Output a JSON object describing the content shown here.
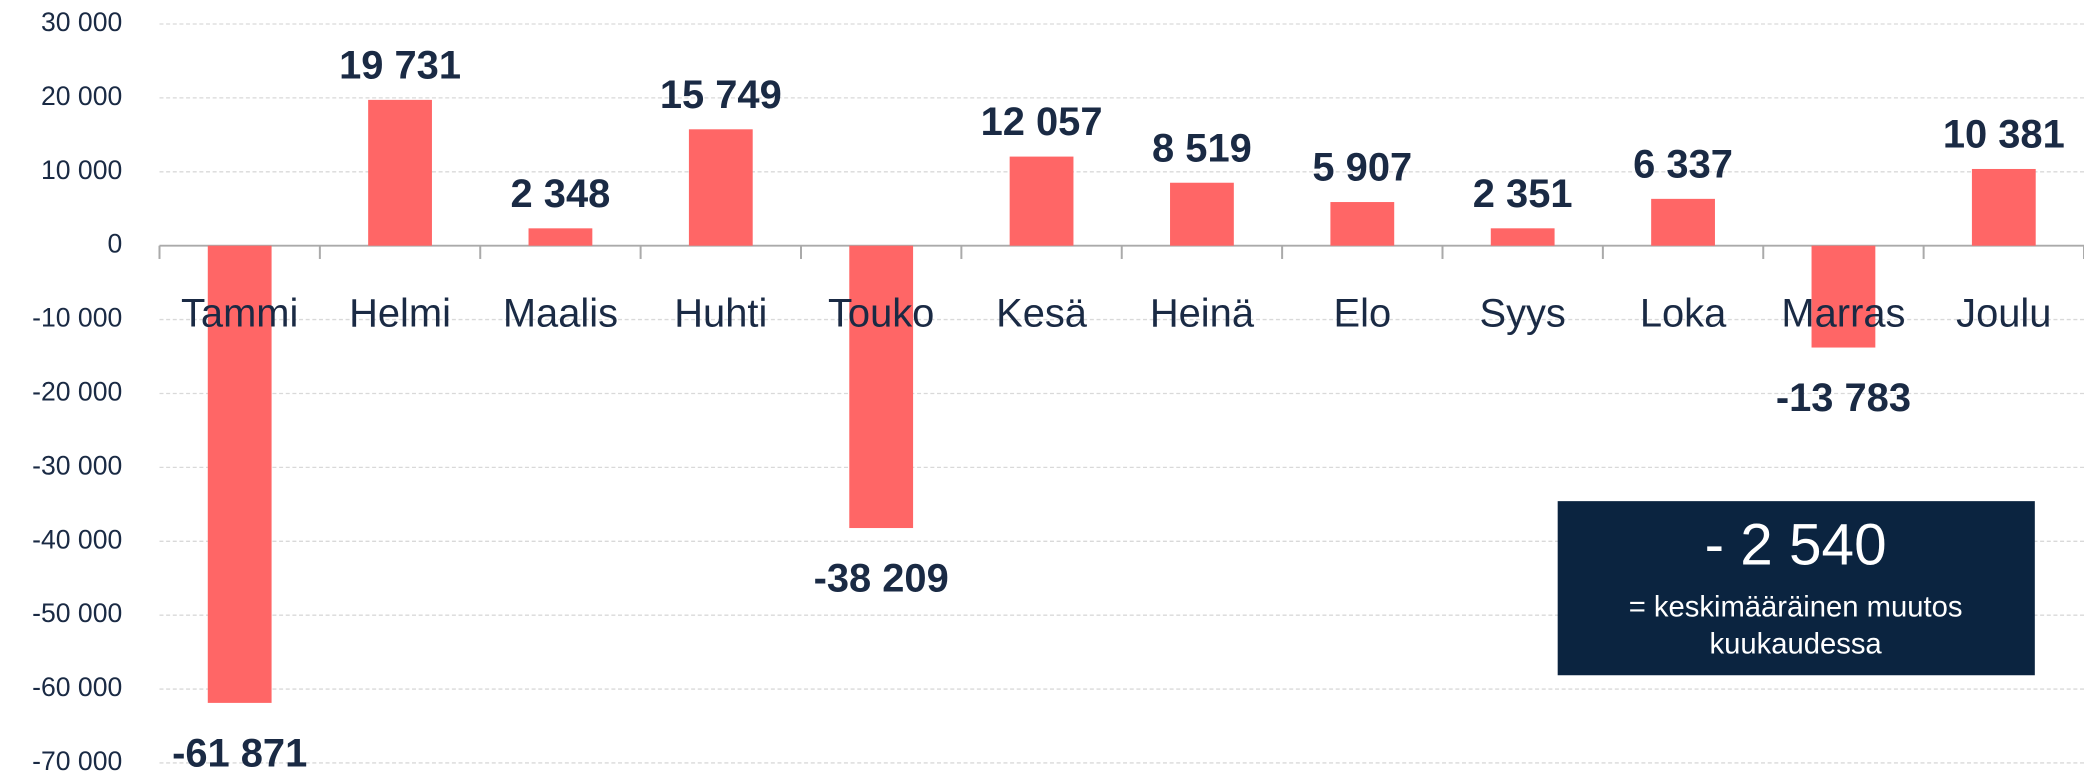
{
  "chart_data": {
    "type": "bar",
    "categories": [
      "Tammi",
      "Helmi",
      "Maalis",
      "Huhti",
      "Touko",
      "Kesä",
      "Heinä",
      "Elo",
      "Syys",
      "Loka",
      "Marras",
      "Joulu"
    ],
    "values": [
      -61871,
      19731,
      2348,
      15749,
      -38209,
      12057,
      8519,
      5907,
      2351,
      6337,
      -13783,
      10381
    ],
    "value_labels": [
      "-61 871",
      "19 731",
      "2 348",
      "15 749",
      "-38 209",
      "12 057",
      "8 519",
      "5 907",
      "2 351",
      "6 337",
      "-13 783",
      "10 381"
    ],
    "color": "#ff6666",
    "ylim": [
      -70000,
      30000
    ],
    "yticks": [
      {
        "value": -70000,
        "label": "-70 000"
      },
      {
        "value": -60000,
        "label": "-60 000"
      },
      {
        "value": -50000,
        "label": "-50 000"
      },
      {
        "value": -40000,
        "label": "-40 000"
      },
      {
        "value": -30000,
        "label": "-30 000"
      },
      {
        "value": -20000,
        "label": "-20 000"
      },
      {
        "value": -10000,
        "label": "-10 000"
      },
      0,
      {
        "value": 10000,
        "label": "10 000"
      },
      {
        "value": 20000,
        "label": "20 000"
      },
      {
        "value": 30000,
        "label": "30 000"
      }
    ],
    "grid": true,
    "annotation": {
      "value": "- 2 540",
      "text": [
        "= keskimääräinen muutos",
        "kuukaudessa"
      ]
    }
  }
}
